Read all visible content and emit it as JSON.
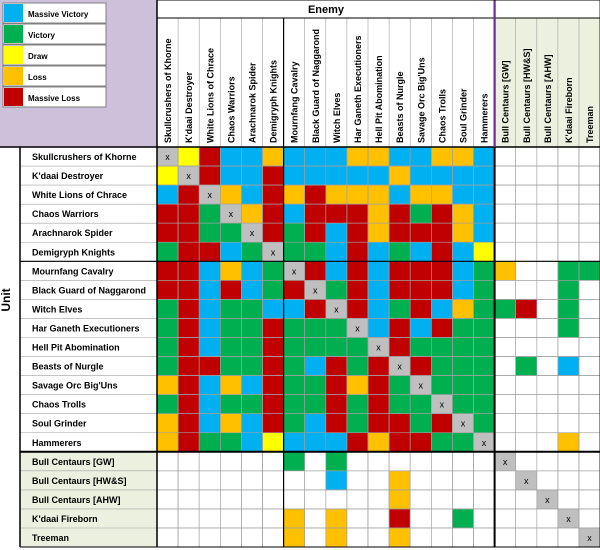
{
  "colors": {
    "massive_victory": "#00B0F0",
    "victory": "#00B050",
    "draw": "#FFFF00",
    "loss": "#FFC000",
    "massive_loss": "#C00000",
    "self": "#BFBFBF",
    "header_fill": "#CCC0DA",
    "purple_line": "#7030A0",
    "green_fill": "#EBF1DE",
    "grid_line": "#A0A0A0"
  },
  "legend": [
    {
      "code": "MV",
      "label": "Massive Victory"
    },
    {
      "code": "V",
      "label": "Victory"
    },
    {
      "code": "D",
      "label": "Draw"
    },
    {
      "code": "L",
      "label": "Loss"
    },
    {
      "code": "ML",
      "label": "Massive Loss"
    }
  ],
  "chart_data": {
    "type": "heatmap",
    "col_axis_label": "Enemy",
    "row_axis_label": "Unit",
    "self_marker": "x",
    "columns": [
      "Skullcrushers of Khorne",
      "K'daai Destroyer",
      "White Lions of Chrace",
      "Chaos Warriors",
      "Arachnarok Spider",
      "Demigryph Knights",
      "Mournfang Cavalry",
      "Black Guard of Naggarond",
      "Witch Elves",
      "Har Ganeth Executioners",
      "Hell Pit Abomination",
      "Beasts of Nurgle",
      "Savage Orc Big'Uns",
      "Chaos Trolls",
      "Soul Grinder",
      "Hammerers",
      "Bull Centaurs [GW]",
      "Bull Centaurs [HW&S]",
      "Bull Centaurs [AHW]",
      "K'daai Fireborn",
      "Treeman"
    ],
    "rows": [
      "Skullcrushers of Khorne",
      "K'daai Destroyer",
      "White Lions of Chrace",
      "Chaos Warriors",
      "Arachnarok Spider",
      "Demigryph Knights",
      "Mournfang Cavalry",
      "Black Guard of Naggarond",
      "Witch Elves",
      "Har Ganeth Executioners",
      "Hell Pit Abomination",
      "Beasts of Nurgle",
      "Savage Orc Big'Uns",
      "Chaos Trolls",
      "Soul Grinder",
      "Hammerers",
      "Bull Centaurs [GW]",
      "Bull Centaurs [HW&S]",
      "Bull Centaurs [AHW]",
      "K'daai Fireborn",
      "Treeman"
    ],
    "cells": [
      [
        "X",
        "D",
        "ML",
        "MV",
        "MV",
        "L",
        "MV",
        "MV",
        "MV",
        "L",
        "L",
        "MV",
        "MV",
        "L",
        "L",
        "MV",
        "",
        "",
        "",
        "",
        ""
      ],
      [
        "D",
        "X",
        "ML",
        "MV",
        "MV",
        "ML",
        "MV",
        "MV",
        "MV",
        "MV",
        "MV",
        "L",
        "MV",
        "MV",
        "MV",
        "MV",
        "",
        "",
        "",
        "",
        ""
      ],
      [
        "MV",
        "ML",
        "X",
        "L",
        "MV",
        "ML",
        "L",
        "ML",
        "L",
        "L",
        "L",
        "MV",
        "L",
        "L",
        "MV",
        "MV",
        "",
        "",
        "",
        "",
        ""
      ],
      [
        "ML",
        "ML",
        "V",
        "X",
        "L",
        "ML",
        "MV",
        "ML",
        "ML",
        "ML",
        "L",
        "ML",
        "V",
        "ML",
        "L",
        "MV",
        "",
        "",
        "",
        "",
        ""
      ],
      [
        "ML",
        "ML",
        "V",
        "V",
        "X",
        "ML",
        "V",
        "ML",
        "MV",
        "ML",
        "L",
        "ML",
        "ML",
        "ML",
        "L",
        "MV",
        "",
        "",
        "",
        "",
        ""
      ],
      [
        "V",
        "ML",
        "ML",
        "MV",
        "V",
        "X",
        "V",
        "V",
        "MV",
        "ML",
        "MV",
        "V",
        "MV",
        "ML",
        "MV",
        "D",
        "",
        "",
        "",
        "",
        ""
      ],
      [
        "ML",
        "ML",
        "MV",
        "L",
        "MV",
        "V",
        "X",
        "ML",
        "MV",
        "ML",
        "MV",
        "ML",
        "ML",
        "ML",
        "MV",
        "V",
        "L",
        "",
        "",
        "V",
        "V"
      ],
      [
        "ML",
        "ML",
        "MV",
        "ML",
        "MV",
        "V",
        "ML",
        "X",
        "V",
        "ML",
        "MV",
        "ML",
        "ML",
        "ML",
        "MV",
        "V",
        "",
        "",
        "",
        "V",
        ""
      ],
      [
        "V",
        "ML",
        "MV",
        "V",
        "V",
        "MV",
        "MV",
        "ML",
        "X",
        "ML",
        "MV",
        "V",
        "ML",
        "MV",
        "L",
        "V",
        "V",
        "ML",
        "",
        "V",
        ""
      ],
      [
        "V",
        "ML",
        "MV",
        "V",
        "V",
        "ML",
        "V",
        "V",
        "V",
        "X",
        "MV",
        "ML",
        "MV",
        "ML",
        "V",
        "V",
        "",
        "",
        "",
        "V",
        ""
      ],
      [
        "V",
        "ML",
        "MV",
        "V",
        "V",
        "ML",
        "V",
        "V",
        "V",
        "V",
        "X",
        "ML",
        "V",
        "V",
        "V",
        "V",
        "",
        "",
        "",
        "",
        ""
      ],
      [
        "V",
        "ML",
        "ML",
        "V",
        "V",
        "ML",
        "V",
        "MV",
        "ML",
        "V",
        "ML",
        "X",
        "ML",
        "V",
        "V",
        "V",
        "",
        "V",
        "",
        "MV",
        ""
      ],
      [
        "L",
        "ML",
        "MV",
        "L",
        "MV",
        "ML",
        "V",
        "V",
        "ML",
        "L",
        "ML",
        "V",
        "X",
        "V",
        "V",
        "V",
        "",
        "",
        "",
        "",
        ""
      ],
      [
        "V",
        "ML",
        "MV",
        "V",
        "V",
        "ML",
        "V",
        "V",
        "ML",
        "V",
        "ML",
        "V",
        "V",
        "X",
        "V",
        "V",
        "",
        "",
        "",
        "",
        ""
      ],
      [
        "L",
        "ML",
        "MV",
        "L",
        "MV",
        "ML",
        "V",
        "MV",
        "ML",
        "V",
        "ML",
        "ML",
        "V",
        "ML",
        "X",
        "V",
        "",
        "",
        "",
        "",
        ""
      ],
      [
        "L",
        "ML",
        "V",
        "V",
        "MV",
        "D",
        "MV",
        "MV",
        "MV",
        "ML",
        "L",
        "ML",
        "ML",
        "V",
        "V",
        "X",
        "",
        "",
        "",
        "L",
        ""
      ],
      [
        "",
        "",
        "",
        "",
        "",
        "",
        "V",
        "",
        "V",
        "",
        "",
        "",
        "",
        "",
        "",
        "",
        "X",
        "",
        "",
        "",
        ""
      ],
      [
        "",
        "",
        "",
        "",
        "",
        "",
        "",
        "",
        "MV",
        "",
        "",
        "L",
        "",
        "",
        "",
        "",
        "",
        "X",
        "",
        "",
        ""
      ],
      [
        "",
        "",
        "",
        "",
        "",
        "",
        "",
        "",
        "",
        "",
        "",
        "L",
        "",
        "",
        "",
        "",
        "",
        "",
        "X",
        "",
        ""
      ],
      [
        "",
        "",
        "",
        "",
        "",
        "",
        "L",
        "",
        "L",
        "",
        "",
        "ML",
        "",
        "",
        "V",
        "",
        "",
        "",
        "",
        "X",
        ""
      ],
      [
        "",
        "",
        "",
        "",
        "",
        "",
        "L",
        "",
        "L",
        "",
        "",
        "L",
        "",
        "",
        "",
        "",
        "",
        "",
        "",
        "",
        "X"
      ]
    ]
  }
}
